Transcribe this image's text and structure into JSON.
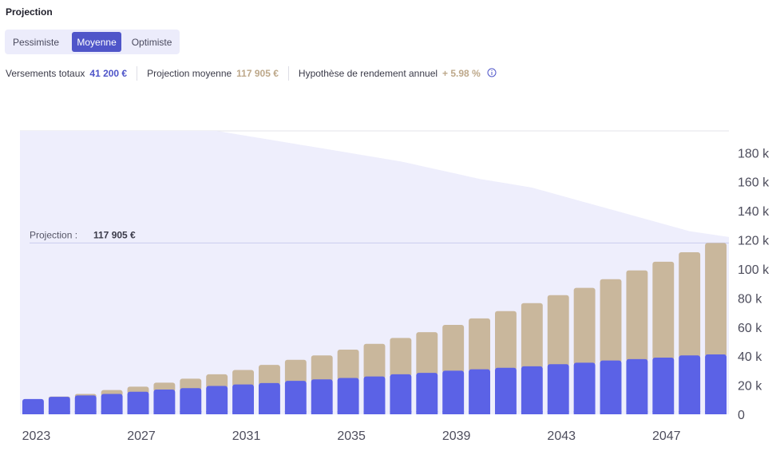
{
  "header": {
    "title": "Projection"
  },
  "scenario_tabs": [
    {
      "label": "Pessimiste",
      "active": false
    },
    {
      "label": "Moyenne",
      "active": true
    },
    {
      "label": "Optimiste",
      "active": false
    }
  ],
  "stats": {
    "versements_label": "Versements totaux",
    "versements_value": "41 200 €",
    "projection_label": "Projection moyenne",
    "projection_value": "117 905 €",
    "rendement_label": "Hypothèse de rendement annuel",
    "rendement_value": "+ 5.98 %",
    "info_icon": "info-circle-icon"
  },
  "colors": {
    "versements": "#5b62e6",
    "gains": "#c9b79c",
    "envelope": "#eeeefc",
    "accent": "#4f55c9",
    "rendement": "#bda88a"
  },
  "chart_data": {
    "type": "bar",
    "stacked": true,
    "categories": [
      "2023",
      "2024",
      "2025",
      "2026",
      "2027",
      "2028",
      "2029",
      "2030",
      "2031",
      "2032",
      "2033",
      "2034",
      "2035",
      "2036",
      "2037",
      "2038",
      "2039",
      "2040",
      "2041",
      "2042",
      "2043",
      "2044",
      "2045",
      "2046",
      "2047",
      "2048",
      "2049"
    ],
    "xtick_labels": [
      "2023",
      "2027",
      "2031",
      "2035",
      "2039",
      "2043",
      "2047"
    ],
    "series": [
      {
        "key": "versements",
        "values": [
          10.5,
          12,
          13,
          14,
          15.5,
          17,
          18,
          19.5,
          20.5,
          21.5,
          23,
          24,
          25,
          26,
          27.5,
          28.5,
          30,
          31,
          32,
          33,
          34.5,
          35.5,
          37,
          38,
          39,
          40.5,
          41.2
        ]
      },
      {
        "key": "gains",
        "values": [
          0,
          0.2,
          1.0,
          2.7,
          3.5,
          4.8,
          6.5,
          8,
          10,
          12.5,
          14.5,
          16.5,
          19.5,
          22.5,
          25,
          28,
          31.5,
          35,
          39,
          43.5,
          47.5,
          51.5,
          56,
          61,
          66,
          71,
          76.7
        ]
      }
    ],
    "envelope_upper": [
      195,
      195,
      195,
      195,
      195,
      195,
      195,
      195,
      192,
      189,
      186,
      183,
      180,
      177,
      174,
      170,
      166,
      162,
      159,
      156,
      151,
      146,
      141,
      136,
      131,
      126,
      122
    ],
    "projection_line": {
      "label": "Projection :",
      "value": "117 905 €",
      "y": 117.9
    },
    "yticks": [
      0,
      20,
      40,
      60,
      80,
      100,
      120,
      140,
      160,
      180
    ],
    "ytick_labels": [
      "0",
      "20 k",
      "40 k",
      "60 k",
      "80 k",
      "100 k",
      "120 k",
      "140 k",
      "160 k",
      "180 k"
    ],
    "ylim": [
      0,
      195
    ],
    "y_axis_position": "right",
    "grid": false,
    "legend": "none"
  }
}
